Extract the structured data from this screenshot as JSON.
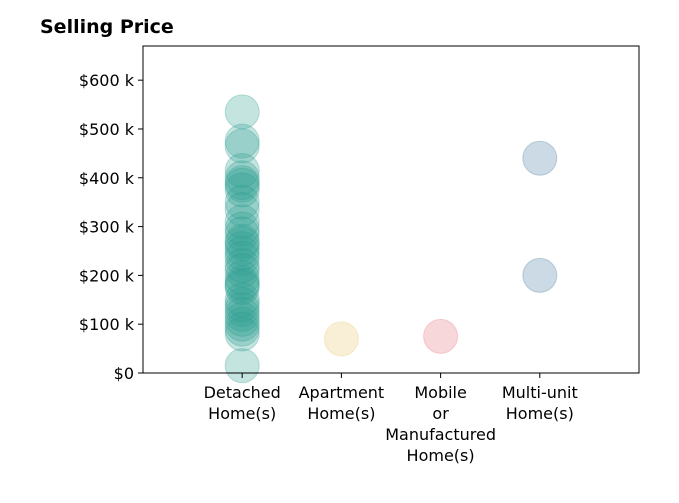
{
  "chart_data": {
    "type": "scatter",
    "title": "Selling Price",
    "xlabel": "",
    "ylabel": "",
    "categories": [
      [
        "Detached",
        "Home(s)"
      ],
      [
        "Apartment",
        "Home(s)"
      ],
      [
        "Mobile",
        "or",
        "Manufactured",
        "Home(s)"
      ],
      [
        "Multi-unit",
        "Home(s)"
      ]
    ],
    "ylim": [
      0,
      670000
    ],
    "xlim": [
      -1,
      4
    ],
    "y_ticks": [
      {
        "value": 0,
        "label": "$0"
      },
      {
        "value": 100000,
        "label": "$100 k"
      },
      {
        "value": 200000,
        "label": "$200 k"
      },
      {
        "value": 300000,
        "label": "$300 k"
      },
      {
        "value": 400000,
        "label": "$400 k"
      },
      {
        "value": 500000,
        "label": "$500 k"
      },
      {
        "value": 600000,
        "label": "$600 k"
      }
    ],
    "grid": false,
    "series": [
      {
        "category_index": 0,
        "color": "#2a9d8f",
        "values": [
          535000,
          475000,
          465000,
          415000,
          400000,
          390000,
          385000,
          375000,
          350000,
          335000,
          310000,
          295000,
          285000,
          270000,
          265000,
          255000,
          245000,
          235000,
          220000,
          210000,
          195000,
          185000,
          180000,
          175000,
          150000,
          140000,
          130000,
          120000,
          110000,
          100000,
          90000,
          80000,
          15000
        ]
      },
      {
        "category_index": 1,
        "color": "#e9c46a",
        "values": [
          70000
        ]
      },
      {
        "category_index": 2,
        "color": "#e76f7a",
        "values": [
          75000
        ]
      },
      {
        "category_index": 3,
        "color": "#457b9d",
        "values": [
          440000,
          200000
        ]
      }
    ]
  }
}
